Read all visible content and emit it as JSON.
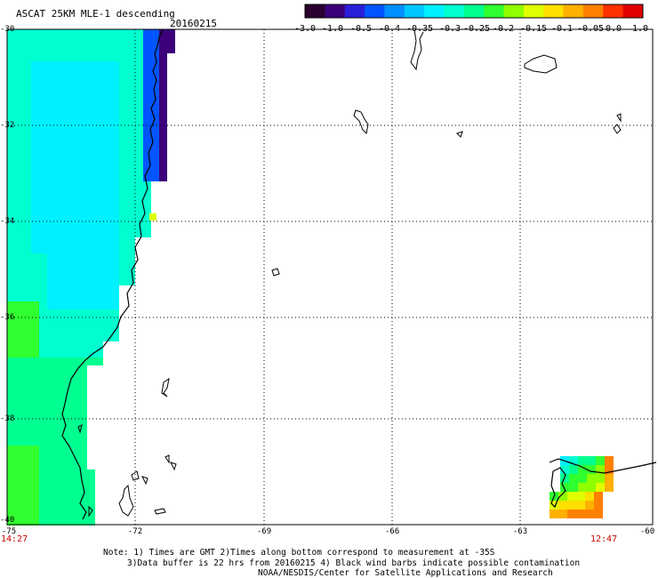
{
  "header": {
    "title": "ASCAT 25KM MLE-1 descending",
    "date": "20160215"
  },
  "colorbar": {
    "labels": [
      "-3.0",
      "-1.0",
      "-0.5",
      "-0.4",
      "-0.35",
      "-0.3",
      "-0.25",
      "-0.2",
      "-0.15",
      "-0.1",
      "-0.05",
      "0.0",
      "1.0"
    ],
    "colors": [
      "#2a0030",
      "#3b007a",
      "#2a1fd8",
      "#0055ff",
      "#0090ff",
      "#00c8ff",
      "#00f0ff",
      "#00ffd0",
      "#00ff90",
      "#30ff30",
      "#90ff00",
      "#e0ff00",
      "#ffe000",
      "#ffb000",
      "#ff8000",
      "#ff3000",
      "#e00000"
    ]
  },
  "axes": {
    "lat_labels": [
      "-30",
      "-32",
      "-34",
      "-36",
      "-38",
      "-40"
    ],
    "lon_labels": [
      "-75",
      "-72",
      "-69",
      "-66",
      "-63",
      "-60"
    ],
    "lat_range": [
      -40,
      -30
    ],
    "lon_range": [
      -75,
      -60
    ]
  },
  "times": {
    "left": "14:27",
    "right": "12:47"
  },
  "notes": {
    "line1": "Note: 1) Times are GMT 2)Times along bottom correspond to measurement at -35S",
    "line2": "3)Data buffer is 22 hrs from 20160215 4) Black wind barbs indicate possible contamination",
    "line3": "NOAA/NESDIS/Center for Satellite Applications and Research"
  }
}
